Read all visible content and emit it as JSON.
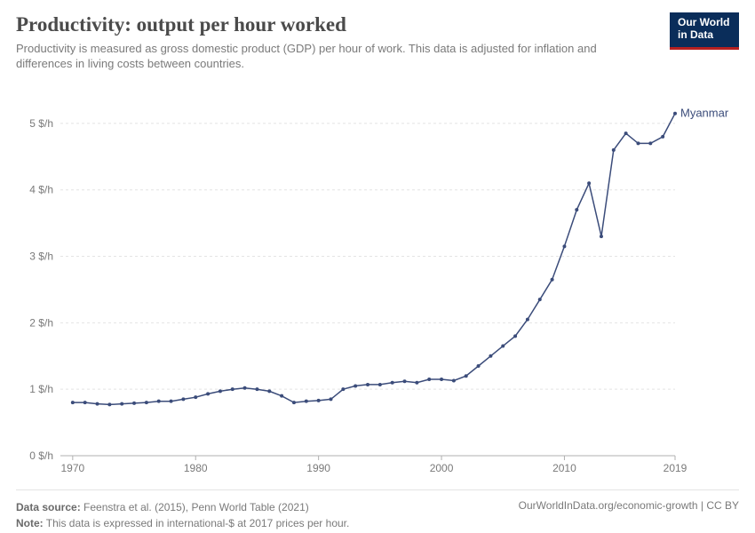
{
  "header": {
    "title": "Productivity: output per hour worked",
    "subtitle": "Productivity is measured as gross domestic product (GDP) per hour of work. This data is adjusted for inflation and differences in living costs between countries.",
    "logo_line1": "Our World",
    "logo_line2": "in Data"
  },
  "chart": {
    "type": "line",
    "background_color": "#ffffff",
    "grid_color": "#e4e4e4",
    "axis_text_color": "#7a7a7a",
    "y": {
      "min": 0,
      "max": 5.4,
      "ticks": [
        0,
        1,
        2,
        3,
        4,
        5
      ],
      "tick_labels": [
        "0 $/h",
        "1 $/h",
        "2 $/h",
        "3 $/h",
        "4 $/h",
        "5 $/h"
      ]
    },
    "x": {
      "min": 1969,
      "max": 2019,
      "ticks": [
        1970,
        1980,
        1990,
        2000,
        2010,
        2019
      ],
      "tick_labels": [
        "1970",
        "1980",
        "1990",
        "2000",
        "2010",
        "2019"
      ]
    },
    "series": [
      {
        "name": "Myanmar",
        "label": "Myanmar",
        "color": "#3b4c7a",
        "line_width": 1.5,
        "marker_radius": 2,
        "points": [
          [
            1970,
            0.8
          ],
          [
            1971,
            0.8
          ],
          [
            1972,
            0.78
          ],
          [
            1973,
            0.77
          ],
          [
            1974,
            0.78
          ],
          [
            1975,
            0.79
          ],
          [
            1976,
            0.8
          ],
          [
            1977,
            0.82
          ],
          [
            1978,
            0.82
          ],
          [
            1979,
            0.85
          ],
          [
            1980,
            0.88
          ],
          [
            1981,
            0.93
          ],
          [
            1982,
            0.97
          ],
          [
            1983,
            1.0
          ],
          [
            1984,
            1.02
          ],
          [
            1985,
            1.0
          ],
          [
            1986,
            0.97
          ],
          [
            1987,
            0.9
          ],
          [
            1988,
            0.8
          ],
          [
            1989,
            0.82
          ],
          [
            1990,
            0.83
          ],
          [
            1991,
            0.85
          ],
          [
            1992,
            1.0
          ],
          [
            1993,
            1.05
          ],
          [
            1994,
            1.07
          ],
          [
            1995,
            1.07
          ],
          [
            1996,
            1.1
          ],
          [
            1997,
            1.12
          ],
          [
            1998,
            1.1
          ],
          [
            1999,
            1.15
          ],
          [
            2000,
            1.15
          ],
          [
            2001,
            1.13
          ],
          [
            2002,
            1.2
          ],
          [
            2003,
            1.35
          ],
          [
            2004,
            1.5
          ],
          [
            2005,
            1.65
          ],
          [
            2006,
            1.8
          ],
          [
            2007,
            2.05
          ],
          [
            2008,
            2.35
          ],
          [
            2009,
            2.65
          ],
          [
            2010,
            3.15
          ],
          [
            2011,
            3.7
          ],
          [
            2012,
            4.1
          ],
          [
            2013,
            3.3
          ],
          [
            2014,
            4.6
          ],
          [
            2015,
            4.85
          ],
          [
            2016,
            4.7
          ],
          [
            2017,
            4.7
          ],
          [
            2018,
            4.8
          ],
          [
            2019,
            5.15
          ]
        ]
      }
    ]
  },
  "footer": {
    "source_label": "Data source:",
    "source_text": "Feenstra et al. (2015), Penn World Table (2021)",
    "note_label": "Note:",
    "note_text": "This data is expressed in international-$ at 2017 prices per hour.",
    "right_text": "OurWorldInData.org/economic-growth | CC BY"
  }
}
